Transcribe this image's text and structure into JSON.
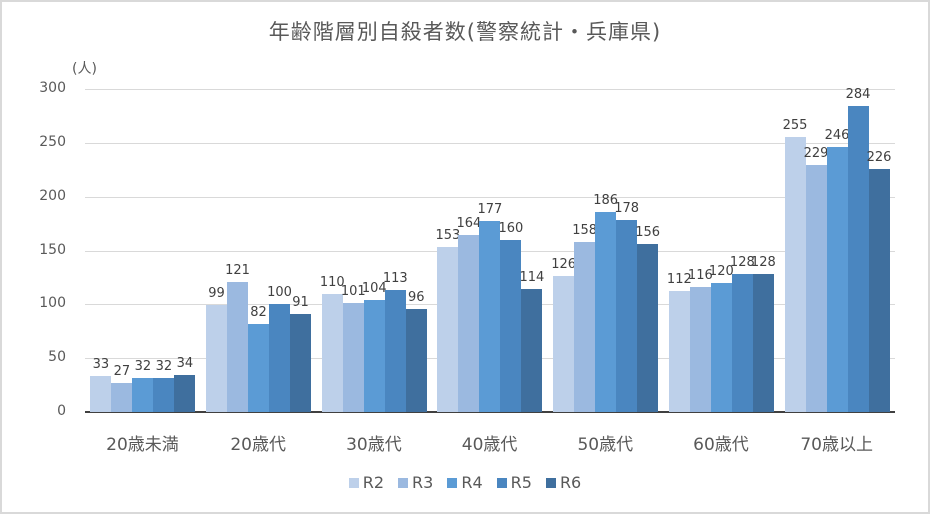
{
  "chart_data": {
    "type": "bar",
    "title": "年齢階層別自殺者数(警察統計・兵庫県)",
    "xlabel": "",
    "ylabel": "(人)",
    "ylim": [
      0,
      300
    ],
    "yticks": [
      0,
      50,
      100,
      150,
      200,
      250,
      300
    ],
    "grid": true,
    "legend_position": "bottom",
    "categories": [
      "20歳未満",
      "20歳代",
      "30歳代",
      "40歳代",
      "50歳代",
      "60歳代",
      "70歳以上"
    ],
    "series": [
      {
        "name": "R2",
        "color": "#bdd0ea",
        "values": [
          33,
          99,
          110,
          153,
          126,
          112,
          255
        ]
      },
      {
        "name": "R3",
        "color": "#9bb9e0",
        "values": [
          27,
          121,
          101,
          164,
          158,
          116,
          229
        ]
      },
      {
        "name": "R4",
        "color": "#5b9bd5",
        "values": [
          32,
          82,
          104,
          177,
          186,
          120,
          246
        ]
      },
      {
        "name": "R5",
        "color": "#4a86c0",
        "values": [
          32,
          100,
          113,
          160,
          178,
          128,
          284
        ]
      },
      {
        "name": "R6",
        "color": "#3f6f9e",
        "values": [
          34,
          91,
          96,
          114,
          156,
          128,
          226
        ]
      }
    ]
  }
}
